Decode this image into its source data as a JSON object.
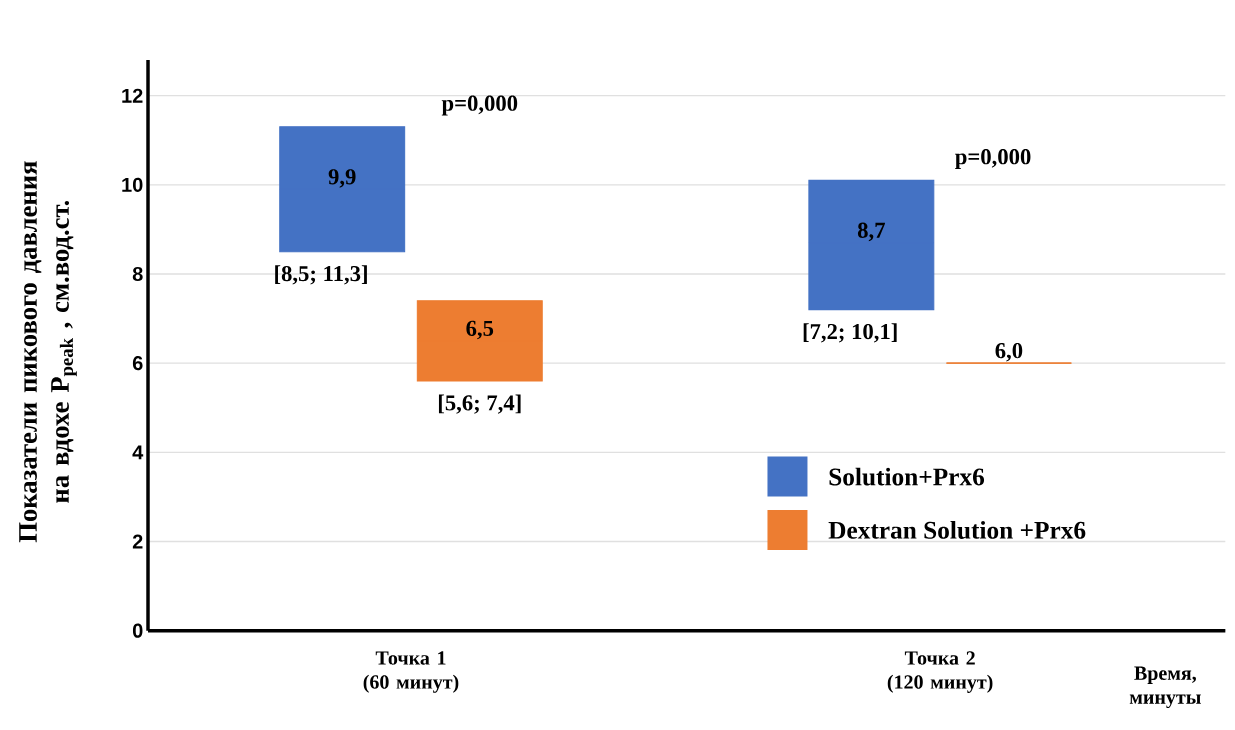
{
  "chart_data": {
    "type": "box",
    "ylabel": "Показатели пикового давления на вдохе P$_{peak}$ , см.вод.ст.",
    "xlabel": "Время, минуты",
    "categories": [
      "Точка 1 (60 минут)",
      "Точка 2 (120 минут)"
    ],
    "series": [
      {
        "name": "Solution+Prx6",
        "color": "#4472c4",
        "boxes": [
          {
            "low": 8.5,
            "q1": 8.5,
            "median": 9.9,
            "q3": 11.3,
            "high": 11.3
          },
          {
            "low": 7.2,
            "q1": 7.2,
            "median": 8.7,
            "q3": 10.1,
            "high": 10.1
          }
        ]
      },
      {
        "name": "Dextran Solution +Prx6",
        "color": "#ed7d31",
        "boxes": [
          {
            "low": 5.6,
            "q1": 5.6,
            "median": 6.5,
            "q3": 7.4,
            "high": 7.4
          },
          {
            "low": 6.0,
            "q1": 6.0,
            "median": 6.0,
            "q3": 6.0,
            "high": 6.0
          }
        ]
      }
    ],
    "ylim": [
      0,
      12.8
    ],
    "yticks": [
      0,
      2,
      4,
      6,
      8,
      10,
      12
    ],
    "grid": "y",
    "legend": "bottom right",
    "annotations": [
      "p=0,000",
      "p=0,000",
      "9,9",
      "[8,5; 11,3]",
      "6,5",
      "[5,6; 7,4]",
      "8,7",
      "[7,2; 10,1]",
      "6,0"
    ]
  }
}
